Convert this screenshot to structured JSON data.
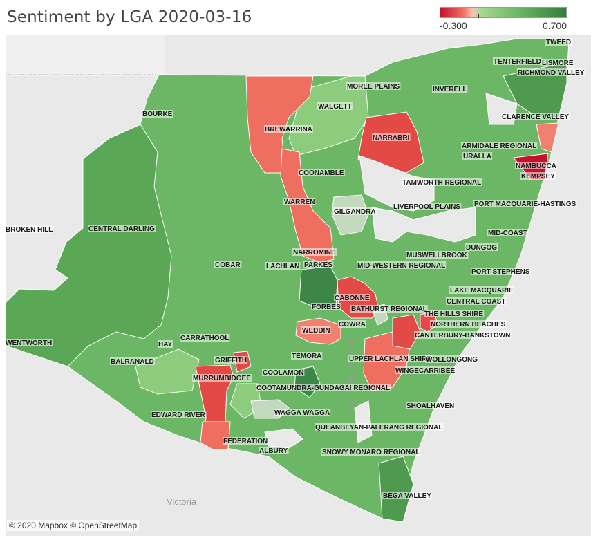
{
  "title": "Sentiment by LGA 2020-03-16",
  "legend": {
    "min_label": "-0.300",
    "max_label": "0.700"
  },
  "colors": {
    "strong_negative": "#c8102e",
    "negative": "#ee6e5f",
    "neutral": "#c3d9bd",
    "light_positive": "#8ccc7c",
    "positive": "#6cb765",
    "strong_positive": "#3c8747",
    "basemap": "#e9e9e9"
  },
  "basemap_labels": {
    "victoria": "Victoria",
    "canberra": "Australian Capital"
  },
  "copyright": "© 2020 Mapbox © OpenStreetMap",
  "lga_labels": [
    "TWEED",
    "LISMORE",
    "RICHMOND VALLEY",
    "TENTERFIELD",
    "MOREE PLAINS",
    "INVERELL",
    "WALGETT",
    "BOURKE",
    "BREWARRINA",
    "NARRABRI",
    "CLARENCE VALLEY",
    "ARMIDALE REGIONAL",
    "URALLA",
    "NAMBUCCA",
    "KEMPSEY",
    "COONAMBLE",
    "TAMWORTH REGIONAL",
    "WARREN",
    "GILGANDRA",
    "LIVERPOOL PLAINS",
    "PORT MACQUARIE-HASTINGS",
    "BROKEN HILL",
    "CENTRAL DARLING",
    "MID-COAST",
    "DUNGOG",
    "MUSWELLBROOK",
    "NARROMINE",
    "PARKES",
    "COBAR",
    "LACHLAN",
    "MID-WESTERN REGIONAL",
    "PORT STEPHENS",
    "LAKE MACQUARIE",
    "CABONNE",
    "CENTRAL COAST",
    "FORBES",
    "BATHURST REGIONAL",
    "THE HILLS SHIRE",
    "NORTHERN BEACHES",
    "COWRA",
    "WEDDIN",
    "CANTERBURY-BANKSTOWN",
    "CARRATHOOL",
    "HAY",
    "WENTWORTH",
    "BALRANALD",
    "GRIFFITH",
    "TEMORA",
    "UPPER LACHLAN SHIRE",
    "WOLLONGONG",
    "MURRUMBIDGEE",
    "COOLAMON",
    "WINGECARRIBEE",
    "COOTAMUNDRA-GUNDAGAI REGIONAL",
    "EDWARD RIVER",
    "WAGGA WAGGA",
    "SHOALHAVEN",
    "QUEANBEYAN-PALERANG REGIONAL",
    "FEDERATION",
    "ALBURY",
    "SNOWY MONARO REGIONAL",
    "BEGA VALLEY"
  ]
}
